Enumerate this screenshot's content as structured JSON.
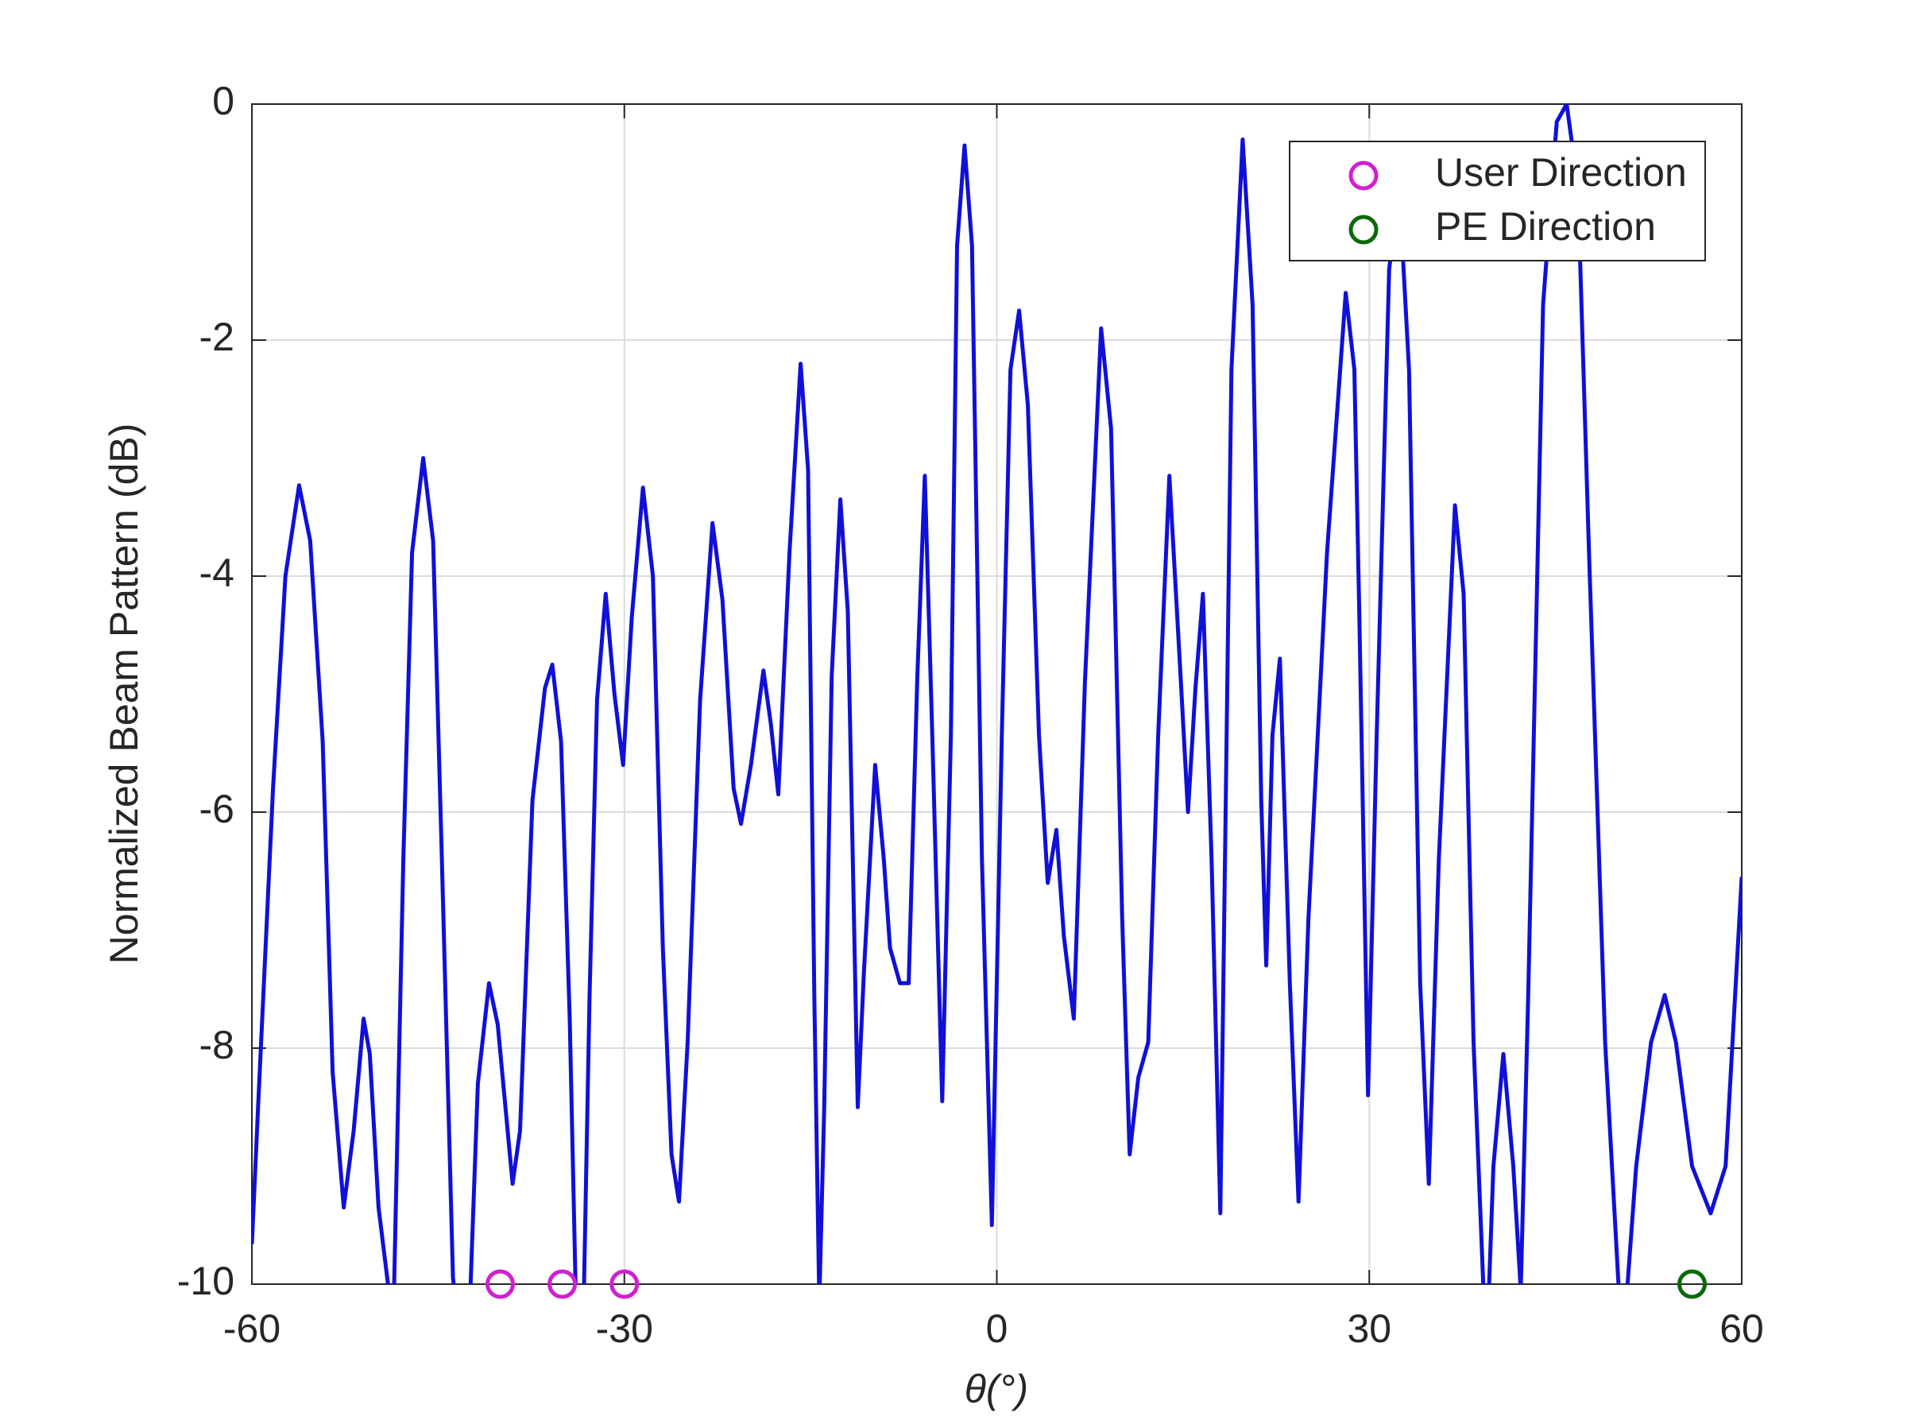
{
  "chart_data": {
    "type": "line",
    "xlabel": "θ(°)",
    "ylabel": "Normalized Beam Pattern (dB)",
    "xlim": [
      -60,
      60
    ],
    "xticks": [
      -60,
      -30,
      0,
      30,
      60
    ],
    "ylim": [
      -10,
      0
    ],
    "yticks": [
      -10,
      -8,
      -6,
      -4,
      -2,
      0
    ],
    "grid": true,
    "legend": "upper right",
    "color": "#1010d8",
    "x": [
      -60,
      -59.5,
      -58.3,
      -57.3,
      -56.2,
      -55.3,
      -54.3,
      -53.5,
      -52.6,
      -51.8,
      -51,
      -50.5,
      -49.8,
      -48.8,
      -48.6,
      -47.8,
      -47.1,
      -46.2,
      -45.4,
      -44.7,
      -43.8,
      -43.4,
      -42.6,
      -42.4,
      -41.8,
      -40.9,
      -40.2,
      -39,
      -38.4,
      -37.4,
      -36.4,
      -35.8,
      -35.1,
      -34.4,
      -33.9,
      -33.3,
      -32.8,
      -32.2,
      -31.5,
      -30.8,
      -30.1,
      -29.4,
      -28.5,
      -27.7,
      -26.9,
      -26.2,
      -25.6,
      -24.9,
      -23.9,
      -22.9,
      -22.1,
      -21.2,
      -20.6,
      -19.8,
      -18.8,
      -18.2,
      -17.6,
      -16.7,
      -15.8,
      -15.2,
      -14.7,
      -14.3,
      -13.9,
      -13.3,
      -12.6,
      -12,
      -11.2,
      -10.7,
      -9.8,
      -9.1,
      -8.6,
      -7.8,
      -7.1,
      -6.4,
      -5.8,
      -5.2,
      -4.4,
      -3.7,
      -3.2,
      -2.6,
      -2,
      -1.2,
      -0.4,
      0.4,
      1.1,
      1.8,
      2.5,
      3.4,
      4.1,
      4.8,
      5.4,
      6.2,
      7.1,
      8.4,
      9.2,
      10.1,
      10.7,
      11.4,
      12.2,
      13,
      13.9,
      14.8,
      15.4,
      16,
      16.6,
      17.3,
      18,
      18.9,
      19.8,
      20.6,
      21.3,
      21.7,
      22.2,
      22.8,
      23.6,
      24.3,
      25.1,
      26.6,
      28.1,
      28.8,
      29.2,
      29.9,
      30.6,
      31.6,
      32.4,
      33.2,
      34.1,
      34.8,
      35.6,
      36.9,
      37.6,
      38.4,
      39.2,
      39.6,
      40,
      40.8,
      41.6,
      42.2,
      42.8,
      44,
      45.1,
      45.9,
      46.8,
      47.7,
      49,
      50.1,
      50.7,
      51.5,
      52.7,
      53.8,
      54.7,
      56,
      57.5,
      58.7,
      60
    ],
    "values": [
      -9.66,
      -8.5,
      -5.8,
      -4,
      -3.23,
      -3.7,
      -5.4,
      -8.2,
      -9.35,
      -8.7,
      -7.75,
      -8.05,
      -9.35,
      -10.2,
      -10.3,
      -6.4,
      -3.8,
      -3,
      -3.7,
      -6.4,
      -9.95,
      -10.3,
      -10.15,
      -10.05,
      -8.3,
      -7.45,
      -7.8,
      -9.15,
      -8.7,
      -5.9,
      -4.95,
      -4.75,
      -5.4,
      -7.75,
      -10.15,
      -10.3,
      -7.55,
      -5.05,
      -4.15,
      -5,
      -5.6,
      -4.35,
      -3.25,
      -4,
      -7.15,
      -8.9,
      -9.3,
      -7.95,
      -5.05,
      -3.55,
      -4.2,
      -5.8,
      -6.1,
      -5.6,
      -4.8,
      -5.25,
      -5.85,
      -3.8,
      -2.2,
      -3.1,
      -7.55,
      -10.15,
      -8.5,
      -4.85,
      -3.35,
      -4.3,
      -8.5,
      -7.35,
      -5.6,
      -6.4,
      -7.15,
      -7.45,
      -7.45,
      -4.85,
      -3.15,
      -5.35,
      -8.45,
      -5.35,
      -1.2,
      -0.35,
      -1.2,
      -6.4,
      -9.5,
      -5.35,
      -2.25,
      -1.75,
      -2.55,
      -5.35,
      -6.6,
      -6.15,
      -7.05,
      -7.75,
      -4.9,
      -1.9,
      -2.75,
      -6.9,
      -8.9,
      -8.25,
      -7.95,
      -5.35,
      -3.15,
      -4.85,
      -6,
      -4.95,
      -4.15,
      -6.4,
      -9.4,
      -2.25,
      -0.3,
      -1.7,
      -5.9,
      -7.3,
      -5.35,
      -4.7,
      -7.45,
      -9.3,
      -6.9,
      -3.8,
      -1.6,
      -2.25,
      -4.35,
      -8.4,
      -5.35,
      -1.4,
      -0.7,
      -2.25,
      -7.45,
      -9.15,
      -6.4,
      -3.4,
      -4.15,
      -7.95,
      -10.05,
      -10.15,
      -9,
      -8.05,
      -9,
      -10.05,
      -7.55,
      -1.7,
      -0.15,
      0,
      -0.7,
      -3.8,
      -7.95,
      -10.05,
      -10.15,
      -9,
      -7.95,
      -7.55,
      -7.95,
      -9,
      -9.4,
      -9,
      -6.55
    ],
    "markers": [
      {
        "name": "User Direction",
        "color": "#d020d0",
        "x": [
          -40,
          -35,
          -30
        ],
        "values": [
          -10,
          -10,
          -10
        ]
      },
      {
        "name": "PE Direction",
        "color": "#0a6a0a",
        "x": [
          56
        ],
        "values": [
          -10
        ]
      }
    ]
  }
}
